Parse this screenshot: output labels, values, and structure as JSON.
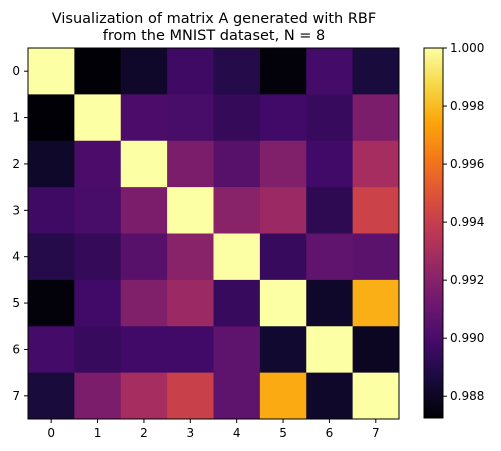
{
  "chart_data": {
    "type": "heatmap",
    "title_lines": [
      "Visualization of matrix A generated with RBF",
      "from the MNIST dataset, N = 8"
    ],
    "xlabel": "",
    "ylabel": "",
    "x_ticks": [
      "0",
      "1",
      "2",
      "3",
      "4",
      "5",
      "6",
      "7"
    ],
    "y_ticks": [
      "0",
      "1",
      "2",
      "3",
      "4",
      "5",
      "6",
      "7"
    ],
    "colormap": "inferno",
    "vmin": 0.98725,
    "vmax": 1.0,
    "colorbar_ticks": [
      {
        "value": 0.988,
        "label": "0.988"
      },
      {
        "value": 0.99,
        "label": "0.990"
      },
      {
        "value": 0.992,
        "label": "0.992"
      },
      {
        "value": 0.994,
        "label": "0.994"
      },
      {
        "value": 0.996,
        "label": "0.996"
      },
      {
        "value": 0.998,
        "label": "0.998"
      },
      {
        "value": 1.0,
        "label": "1.000"
      }
    ],
    "matrix": [
      [
        1.0,
        0.9873,
        0.9882,
        0.9897,
        0.989,
        0.9874,
        0.9899,
        0.9886
      ],
      [
        0.9873,
        1.0,
        0.9901,
        0.99,
        0.9894,
        0.9898,
        0.9895,
        0.9916
      ],
      [
        0.9882,
        0.9901,
        1.0,
        0.9916,
        0.9905,
        0.9918,
        0.9898,
        0.9929
      ],
      [
        0.9897,
        0.99,
        0.9916,
        1.0,
        0.992,
        0.9926,
        0.9892,
        0.9942
      ],
      [
        0.989,
        0.9894,
        0.9905,
        0.992,
        1.0,
        0.9895,
        0.9908,
        0.9906
      ],
      [
        0.9874,
        0.9898,
        0.9918,
        0.9926,
        0.9895,
        1.0,
        0.9882,
        0.9977
      ],
      [
        0.9899,
        0.9895,
        0.9898,
        0.9898,
        0.9907,
        0.9883,
        1.0,
        0.988
      ],
      [
        0.9886,
        0.9916,
        0.9929,
        0.9941,
        0.9907,
        0.9976,
        0.9882,
        1.0
      ]
    ]
  }
}
